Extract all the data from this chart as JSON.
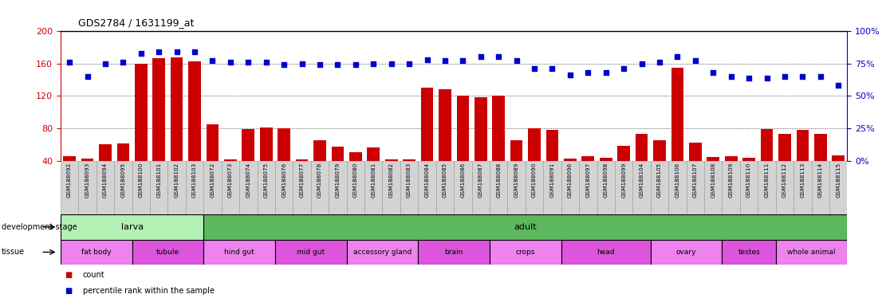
{
  "title": "GDS2784 / 1631199_at",
  "samples": [
    "GSM188092",
    "GSM188093",
    "GSM188094",
    "GSM188095",
    "GSM188100",
    "GSM188101",
    "GSM188102",
    "GSM188103",
    "GSM188072",
    "GSM188073",
    "GSM188074",
    "GSM188075",
    "GSM188076",
    "GSM188077",
    "GSM188078",
    "GSM188079",
    "GSM188080",
    "GSM188081",
    "GSM188082",
    "GSM188083",
    "GSM188084",
    "GSM188085",
    "GSM188086",
    "GSM188087",
    "GSM188088",
    "GSM188089",
    "GSM188090",
    "GSM188091",
    "GSM188096",
    "GSM188097",
    "GSM188098",
    "GSM188099",
    "GSM188104",
    "GSM188105",
    "GSM188106",
    "GSM188107",
    "GSM188108",
    "GSM188109",
    "GSM188110",
    "GSM188111",
    "GSM188112",
    "GSM188113",
    "GSM188114",
    "GSM188115"
  ],
  "counts": [
    46,
    43,
    61,
    62,
    160,
    166,
    167,
    163,
    85,
    42,
    79,
    81,
    80,
    42,
    65,
    58,
    51,
    57,
    42,
    42,
    130,
    128,
    120,
    118,
    120,
    65,
    80,
    78,
    43,
    46,
    44,
    59,
    73,
    65,
    155,
    63,
    45,
    46,
    44,
    79,
    73,
    78,
    73,
    47
  ],
  "percentiles": [
    76,
    65,
    75,
    76,
    83,
    84,
    84,
    84,
    77,
    76,
    76,
    76,
    74,
    75,
    74,
    74,
    74,
    75,
    75,
    75,
    78,
    77,
    77,
    80,
    80,
    77,
    71,
    71,
    66,
    68,
    68,
    71,
    75,
    76,
    80,
    77,
    68,
    65,
    64,
    64,
    65,
    65,
    65,
    58
  ],
  "ylim_left": [
    40,
    200
  ],
  "ylim_right": [
    0,
    100
  ],
  "yticks_left": [
    40,
    80,
    120,
    160,
    200
  ],
  "yticks_right": [
    0,
    25,
    50,
    75,
    100
  ],
  "grid_values": [
    80,
    120,
    160
  ],
  "development_stages": [
    {
      "label": "larva",
      "start": 0,
      "end": 8,
      "color": "#b3f0b3"
    },
    {
      "label": "adult",
      "start": 8,
      "end": 44,
      "color": "#5cb85c"
    }
  ],
  "tissues": [
    {
      "label": "fat body",
      "start": 0,
      "end": 4,
      "color": "#ee82ee"
    },
    {
      "label": "tubule",
      "start": 4,
      "end": 8,
      "color": "#dd55dd"
    },
    {
      "label": "hind gut",
      "start": 8,
      "end": 12,
      "color": "#ee82ee"
    },
    {
      "label": "mid gut",
      "start": 12,
      "end": 16,
      "color": "#dd55dd"
    },
    {
      "label": "accessory gland",
      "start": 16,
      "end": 20,
      "color": "#ee82ee"
    },
    {
      "label": "brain",
      "start": 20,
      "end": 24,
      "color": "#dd55dd"
    },
    {
      "label": "crops",
      "start": 24,
      "end": 28,
      "color": "#ee82ee"
    },
    {
      "label": "head",
      "start": 28,
      "end": 33,
      "color": "#dd55dd"
    },
    {
      "label": "ovary",
      "start": 33,
      "end": 37,
      "color": "#ee82ee"
    },
    {
      "label": "testes",
      "start": 37,
      "end": 40,
      "color": "#dd55dd"
    },
    {
      "label": "whole animal",
      "start": 40,
      "end": 44,
      "color": "#ee82ee"
    }
  ],
  "bar_color": "#cc0000",
  "scatter_color": "#0000cc",
  "left_axis_color": "#cc0000",
  "right_axis_color": "#0000cc",
  "background_color": "#ffffff"
}
